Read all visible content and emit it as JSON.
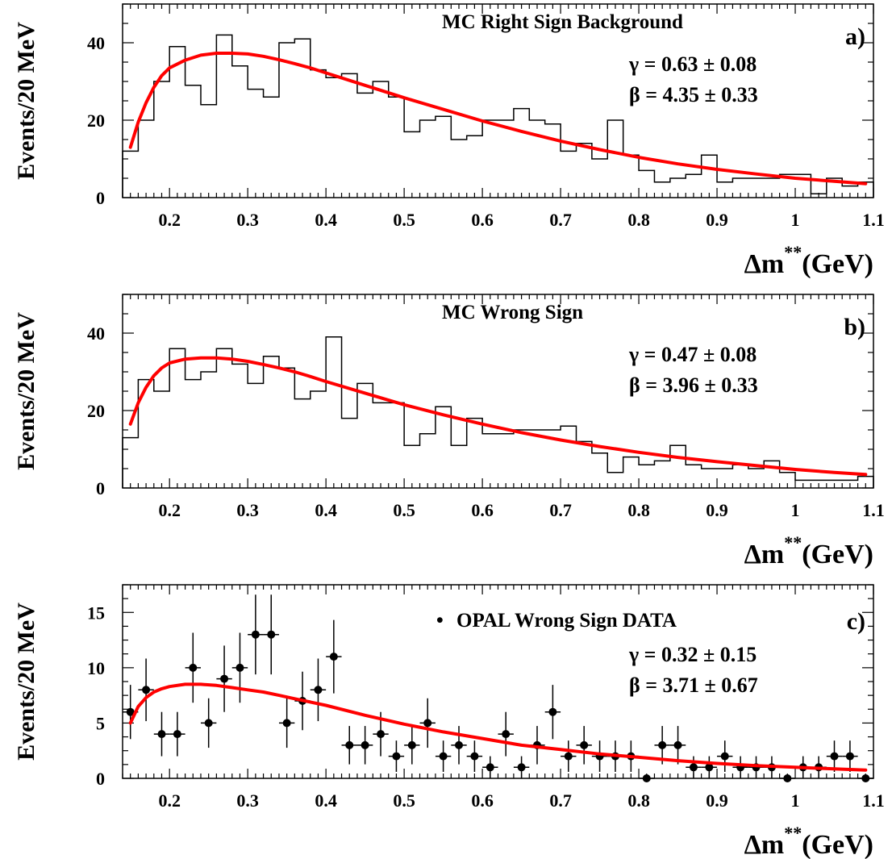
{
  "chart_data": [
    {
      "id": "a",
      "type": "histogram",
      "title": "MC Right Sign Background",
      "panel_label": "a)",
      "ylabel": "Events/20 MeV",
      "xlabel": "Δm",
      "xlabel_sup": "**",
      "xlabel_unit": "(GeV)",
      "xlim": [
        0.14,
        1.1
      ],
      "ylim": [
        0,
        50
      ],
      "xticks": [
        0.2,
        0.3,
        0.4,
        0.5,
        0.6,
        0.7,
        0.8,
        0.9,
        1.0,
        1.1
      ],
      "xtick_labels": [
        "0.2",
        "0.3",
        "0.4",
        "0.5",
        "0.6",
        "0.7",
        "0.8",
        "0.9",
        "1",
        "1.1"
      ],
      "yticks": [
        0,
        20,
        40
      ],
      "ytick_labels": [
        "0",
        "20",
        "40"
      ],
      "params": [
        {
          "label": "γ = 0.63 ± 0.08"
        },
        {
          "label": "β = 4.35 ± 0.33"
        }
      ],
      "bin_start": 0.14,
      "bin_width": 0.02,
      "hist_values": [
        12,
        20,
        30,
        39,
        29,
        24,
        42,
        34,
        28,
        26,
        40,
        41,
        33,
        31,
        32,
        27,
        30,
        26,
        17,
        20,
        21,
        15,
        16,
        20,
        20,
        23,
        20,
        19,
        12,
        14,
        10,
        20,
        11,
        7,
        4,
        5,
        6,
        11,
        4,
        5,
        5,
        5,
        6,
        6,
        1,
        5,
        3,
        4
      ],
      "fit_color": "#ff0000",
      "fit_curve": {
        "x": [
          0.15,
          0.16,
          0.17,
          0.18,
          0.19,
          0.2,
          0.22,
          0.24,
          0.26,
          0.28,
          0.3,
          0.32,
          0.34,
          0.36,
          0.38,
          0.4,
          0.45,
          0.5,
          0.55,
          0.6,
          0.65,
          0.7,
          0.75,
          0.8,
          0.85,
          0.9,
          0.95,
          1.0,
          1.05,
          1.09
        ],
        "y": [
          13,
          19.5,
          24.5,
          28.5,
          31.5,
          33.5,
          35.5,
          36.8,
          37.3,
          37.3,
          37.1,
          36.5,
          35.6,
          34.6,
          33.5,
          32.2,
          29,
          25.8,
          22.8,
          19.8,
          17.1,
          14.6,
          12.4,
          10.4,
          8.7,
          7.3,
          6.1,
          5,
          4.2,
          3.6
        ]
      }
    },
    {
      "id": "b",
      "type": "histogram",
      "title": "MC Wrong Sign",
      "panel_label": "b)",
      "ylabel": "Events/20 MeV",
      "xlabel": "Δm",
      "xlabel_sup": "**",
      "xlabel_unit": "(GeV)",
      "xlim": [
        0.14,
        1.1
      ],
      "ylim": [
        0,
        50
      ],
      "xticks": [
        0.2,
        0.3,
        0.4,
        0.5,
        0.6,
        0.7,
        0.8,
        0.9,
        1.0,
        1.1
      ],
      "xtick_labels": [
        "0.2",
        "0.3",
        "0.4",
        "0.5",
        "0.6",
        "0.7",
        "0.8",
        "0.9",
        "1",
        "1.1"
      ],
      "yticks": [
        0,
        20,
        40
      ],
      "ytick_labels": [
        "0",
        "20",
        "40"
      ],
      "params": [
        {
          "label": "γ = 0.47 ± 0.08"
        },
        {
          "label": "β = 3.96 ± 0.33"
        }
      ],
      "bin_start": 0.14,
      "bin_width": 0.02,
      "hist_values": [
        13,
        28,
        25,
        36,
        28,
        30,
        36,
        32,
        27,
        34,
        31,
        23,
        25,
        39,
        18,
        27,
        22,
        22,
        11,
        14,
        21,
        11,
        18,
        14,
        14,
        15,
        15,
        15,
        16,
        12,
        9,
        4,
        8,
        6,
        7,
        11,
        6,
        5,
        5,
        6,
        5,
        7,
        4,
        2,
        2,
        2,
        2,
        3
      ],
      "fit_color": "#ff0000",
      "fit_curve": {
        "x": [
          0.15,
          0.16,
          0.17,
          0.18,
          0.19,
          0.2,
          0.22,
          0.24,
          0.26,
          0.28,
          0.3,
          0.32,
          0.34,
          0.36,
          0.38,
          0.4,
          0.45,
          0.5,
          0.55,
          0.6,
          0.65,
          0.7,
          0.75,
          0.8,
          0.85,
          0.9,
          0.95,
          1.0,
          1.05,
          1.09
        ],
        "y": [
          16.5,
          22,
          26,
          29,
          31,
          32.3,
          33.3,
          33.6,
          33.6,
          33.3,
          32.7,
          31.9,
          31,
          30,
          28.8,
          27.5,
          24.5,
          21.5,
          18.9,
          16.5,
          14.3,
          12.4,
          10.7,
          9.2,
          7.9,
          6.8,
          5.8,
          4.8,
          4,
          3.5
        ]
      }
    },
    {
      "id": "c",
      "type": "errorbar",
      "title": "OPAL Wrong Sign DATA",
      "title_marker": "•",
      "panel_label": "c)",
      "ylabel": "Events/20 MeV",
      "xlabel": "Δm",
      "xlabel_sup": "**",
      "xlabel_unit": "(GeV)",
      "xlim": [
        0.14,
        1.1
      ],
      "ylim": [
        0,
        17.5
      ],
      "xticks": [
        0.2,
        0.3,
        0.4,
        0.5,
        0.6,
        0.7,
        0.8,
        0.9,
        1.0,
        1.1
      ],
      "xtick_labels": [
        "0.2",
        "0.3",
        "0.4",
        "0.5",
        "0.6",
        "0.7",
        "0.8",
        "0.9",
        "1",
        "1.1"
      ],
      "yticks": [
        0,
        5,
        10,
        15
      ],
      "ytick_labels": [
        "0",
        "5",
        "10",
        "15"
      ],
      "params": [
        {
          "label": "γ = 0.32 ± 0.15"
        },
        {
          "label": "β = 3.71 ± 0.67"
        }
      ],
      "bin_width": 0.02,
      "points": {
        "x": [
          0.15,
          0.17,
          0.19,
          0.21,
          0.23,
          0.25,
          0.27,
          0.29,
          0.31,
          0.33,
          0.35,
          0.37,
          0.39,
          0.41,
          0.43,
          0.45,
          0.47,
          0.49,
          0.51,
          0.53,
          0.55,
          0.57,
          0.59,
          0.61,
          0.63,
          0.65,
          0.67,
          0.69,
          0.71,
          0.73,
          0.75,
          0.77,
          0.79,
          0.81,
          0.83,
          0.85,
          0.87,
          0.89,
          0.91,
          0.93,
          0.95,
          0.97,
          0.99,
          1.01,
          1.03,
          1.05,
          1.07,
          1.09
        ],
        "y": [
          6,
          8,
          4,
          4,
          10,
          5,
          9,
          10,
          13,
          13,
          5,
          7,
          8,
          11,
          3,
          3,
          4,
          2,
          3,
          5,
          2,
          3,
          2,
          1,
          4,
          1,
          3,
          6,
          2,
          3,
          2,
          2,
          2,
          0,
          3,
          3,
          1,
          1,
          2,
          1,
          1,
          1,
          0,
          1,
          1,
          2,
          2,
          0
        ]
      },
      "fit_color": "#ff0000",
      "fit_curve": {
        "x": [
          0.15,
          0.16,
          0.17,
          0.18,
          0.19,
          0.2,
          0.22,
          0.24,
          0.26,
          0.28,
          0.3,
          0.32,
          0.34,
          0.36,
          0.38,
          0.4,
          0.45,
          0.5,
          0.55,
          0.6,
          0.65,
          0.7,
          0.75,
          0.8,
          0.85,
          0.9,
          0.95,
          1.0,
          1.05,
          1.09
        ],
        "y": [
          5,
          6.5,
          7.3,
          7.8,
          8.1,
          8.3,
          8.5,
          8.5,
          8.4,
          8.2,
          8,
          7.8,
          7.5,
          7.2,
          6.9,
          6.6,
          5.7,
          4.9,
          4.2,
          3.6,
          3,
          2.6,
          2.2,
          1.9,
          1.6,
          1.35,
          1.15,
          1,
          0.85,
          0.75
        ]
      }
    }
  ]
}
